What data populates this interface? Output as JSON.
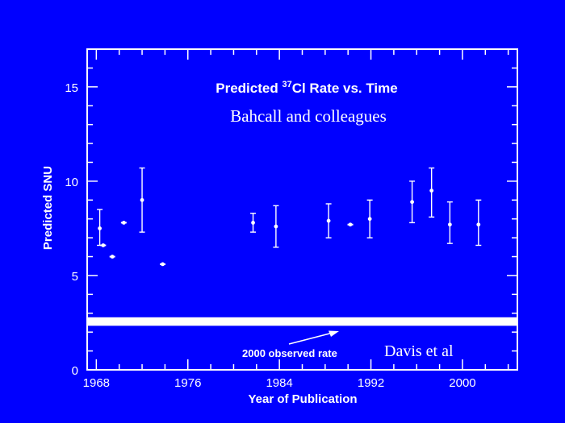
{
  "chart_data": {
    "type": "scatter",
    "title_prefix": "Predicted ",
    "title_sup": "37",
    "title_suffix": "Cl Rate vs. Time",
    "subtitle": "Bahcall and colleagues",
    "xlabel": "Year of Publication",
    "ylabel": "Predicted SNU",
    "xlim": [
      1967.2,
      2004.8
    ],
    "ylim": [
      0,
      17
    ],
    "xticks": [
      1968,
      1976,
      1984,
      1992,
      2000
    ],
    "yticks": [
      0,
      5,
      10,
      15
    ],
    "grid": false,
    "series": [
      {
        "points": [
          {
            "x": 1968.3,
            "y": 7.5,
            "lo": 6.6,
            "hi": 8.5
          },
          {
            "x": 1968.6,
            "y": 6.6
          },
          {
            "x": 1969.4,
            "y": 6.0
          },
          {
            "x": 1970.4,
            "y": 7.8
          },
          {
            "x": 1972.0,
            "y": 9.0,
            "lo": 7.3,
            "hi": 10.7
          },
          {
            "x": 1973.8,
            "y": 5.6
          },
          {
            "x": 1981.7,
            "y": 7.8,
            "lo": 7.3,
            "hi": 8.3
          },
          {
            "x": 1983.7,
            "y": 7.6,
            "lo": 6.5,
            "hi": 8.7
          },
          {
            "x": 1988.3,
            "y": 7.9,
            "lo": 7.0,
            "hi": 8.8
          },
          {
            "x": 1990.2,
            "y": 7.7
          },
          {
            "x": 1991.9,
            "y": 8.0,
            "lo": 7.0,
            "hi": 9.0
          },
          {
            "x": 1995.6,
            "y": 8.9,
            "lo": 7.8,
            "hi": 10.0
          },
          {
            "x": 1997.3,
            "y": 9.5,
            "lo": 8.1,
            "hi": 10.7
          },
          {
            "x": 1998.9,
            "y": 7.7,
            "lo": 6.7,
            "hi": 8.9
          },
          {
            "x": 2001.4,
            "y": 7.7,
            "lo": 6.6,
            "hi": 9.0
          }
        ]
      }
    ],
    "observed_band": {
      "y": 2.56,
      "thickness": 0.45
    },
    "annotation_1": "2000 observed rate",
    "annotation_2": "Davis et al"
  },
  "colors": {
    "background": "#0000ff",
    "foreground": "#ffffff"
  }
}
